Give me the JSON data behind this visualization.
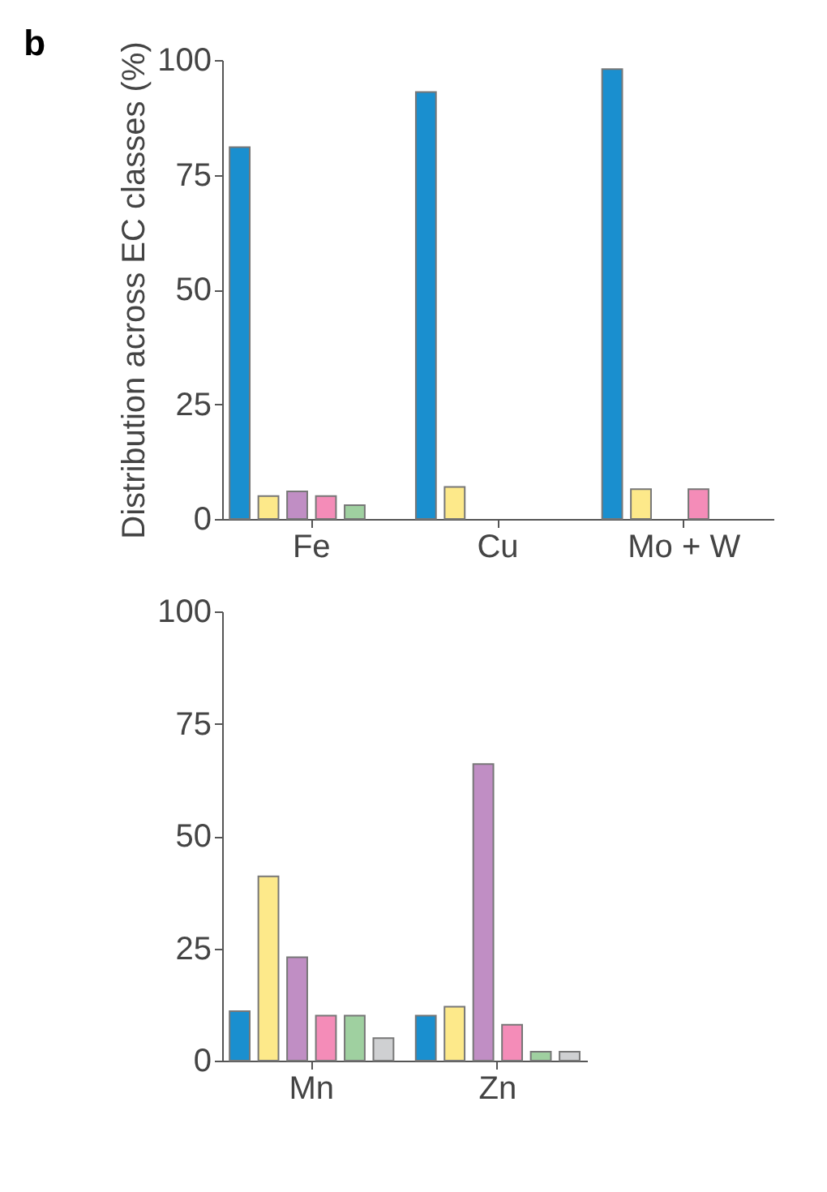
{
  "chart_data": [
    {
      "type": "bar",
      "title": "b",
      "ylabel": "Distribution across EC classes (%)",
      "categories": [
        "Fe",
        "Cu",
        "Mo + W"
      ],
      "ylim": [
        0,
        100
      ],
      "yticks": [
        0,
        25,
        50,
        75,
        100
      ],
      "grid": false,
      "legend": false,
      "series": [
        {
          "color": "#1a8fcf",
          "values": [
            81,
            93,
            98
          ]
        },
        {
          "color": "#fde98a",
          "values": [
            5,
            7,
            6.5
          ]
        },
        {
          "color": "#c08ec4",
          "values": [
            6,
            null,
            null
          ]
        },
        {
          "color": "#f48cb8",
          "values": [
            5,
            null,
            6.5
          ]
        },
        {
          "color": "#9fd0a0",
          "values": [
            3,
            null,
            null
          ]
        },
        {
          "color": "#cfd0d2",
          "values": [
            null,
            null,
            null
          ]
        }
      ]
    },
    {
      "type": "bar",
      "categories": [
        "Mn",
        "Zn"
      ],
      "ylim": [
        0,
        100
      ],
      "yticks": [
        0,
        25,
        50,
        75,
        100
      ],
      "grid": false,
      "legend": false,
      "series": [
        {
          "color": "#1a8fcf",
          "values": [
            11,
            10
          ]
        },
        {
          "color": "#fde98a",
          "values": [
            41,
            12
          ]
        },
        {
          "color": "#c08ec4",
          "values": [
            23,
            66
          ]
        },
        {
          "color": "#f48cb8",
          "values": [
            10,
            8
          ]
        },
        {
          "color": "#9fd0a0",
          "values": [
            10,
            2
          ]
        },
        {
          "color": "#cfd0d2",
          "values": [
            5,
            2
          ]
        }
      ]
    }
  ]
}
